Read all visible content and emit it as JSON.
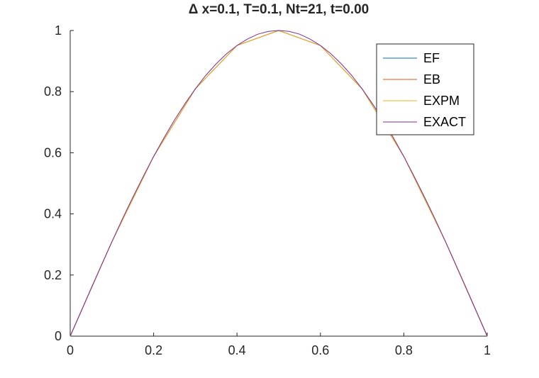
{
  "chart_data": {
    "type": "line",
    "title": "Δ x=0.1, T=0.1, Nt=21, t=0.00",
    "xlabel": "",
    "ylabel": "",
    "xlim": [
      0,
      1
    ],
    "ylim": [
      0,
      1
    ],
    "grid": false,
    "legend_position": "top-right",
    "x_ticks": [
      {
        "value": 0,
        "label": "0"
      },
      {
        "value": 0.2,
        "label": "0.2"
      },
      {
        "value": 0.4,
        "label": "0.4"
      },
      {
        "value": 0.6,
        "label": "0.6"
      },
      {
        "value": 0.8,
        "label": "0.8"
      },
      {
        "value": 1,
        "label": "1"
      }
    ],
    "y_ticks": [
      {
        "value": 0,
        "label": "0"
      },
      {
        "value": 0.2,
        "label": "0.2"
      },
      {
        "value": 0.4,
        "label": "0.4"
      },
      {
        "value": 0.6,
        "label": "0.6"
      },
      {
        "value": 0.8,
        "label": "0.8"
      },
      {
        "value": 1,
        "label": "1"
      }
    ],
    "series": [
      {
        "name": "EF",
        "color": "#0072bd",
        "x": [
          0,
          0.1,
          0.2,
          0.3,
          0.4,
          0.5,
          0.6,
          0.7,
          0.8,
          0.9,
          1.0
        ],
        "y": [
          0,
          0.309,
          0.588,
          0.809,
          0.951,
          1.0,
          0.951,
          0.809,
          0.588,
          0.309,
          0
        ]
      },
      {
        "name": "EB",
        "color": "#d95319",
        "x": [
          0,
          0.1,
          0.2,
          0.3,
          0.4,
          0.5,
          0.6,
          0.7,
          0.8,
          0.9,
          1.0
        ],
        "y": [
          0,
          0.309,
          0.588,
          0.809,
          0.951,
          1.0,
          0.951,
          0.809,
          0.588,
          0.309,
          0
        ]
      },
      {
        "name": "EXPM",
        "color": "#edb120",
        "x": [
          0,
          0.1,
          0.2,
          0.3,
          0.4,
          0.5,
          0.6,
          0.7,
          0.8,
          0.9,
          1.0
        ],
        "y": [
          0,
          0.309,
          0.588,
          0.809,
          0.951,
          1.0,
          0.951,
          0.809,
          0.588,
          0.309,
          0
        ]
      },
      {
        "name": "EXACT",
        "color": "#7e2f8e",
        "x": [
          0,
          0.025,
          0.05,
          0.075,
          0.1,
          0.125,
          0.15,
          0.175,
          0.2,
          0.225,
          0.25,
          0.275,
          0.3,
          0.325,
          0.35,
          0.375,
          0.4,
          0.425,
          0.45,
          0.475,
          0.5,
          0.525,
          0.55,
          0.575,
          0.6,
          0.625,
          0.65,
          0.675,
          0.7,
          0.725,
          0.75,
          0.775,
          0.8,
          0.825,
          0.85,
          0.875,
          0.9,
          0.925,
          0.95,
          0.975,
          1.0
        ],
        "y": [
          0,
          0.078,
          0.156,
          0.233,
          0.309,
          0.383,
          0.454,
          0.522,
          0.588,
          0.649,
          0.707,
          0.76,
          0.809,
          0.853,
          0.891,
          0.924,
          0.951,
          0.972,
          0.988,
          0.997,
          1.0,
          0.997,
          0.988,
          0.972,
          0.951,
          0.924,
          0.891,
          0.853,
          0.809,
          0.76,
          0.707,
          0.649,
          0.588,
          0.522,
          0.454,
          0.383,
          0.309,
          0.233,
          0.156,
          0.078,
          0
        ]
      }
    ]
  }
}
